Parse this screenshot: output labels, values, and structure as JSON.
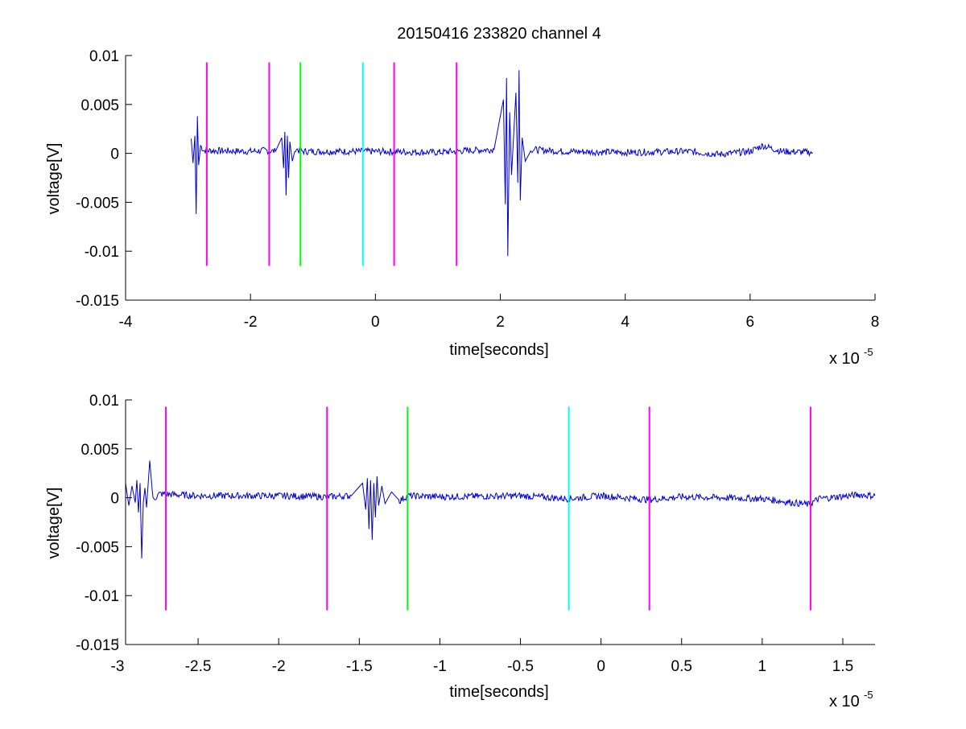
{
  "figure": {
    "title": "20150416 233820 channel 4"
  },
  "colors": {
    "signal": "#0000cc",
    "marker_magenta": "#ff00ff",
    "marker_green": "#00ff00",
    "marker_cyan": "#00ffff",
    "axes": "#000000"
  },
  "chart_data": [
    {
      "type": "line",
      "panel": "top",
      "xlabel": "time[seconds]",
      "ylabel": "voltage[V]",
      "x_scale_label": "x 10",
      "x_scale_exponent": "-5",
      "x_multiplier": 1e-05,
      "xlim": [
        -4,
        8
      ],
      "ylim": [
        -0.015,
        0.01
      ],
      "xticks": [
        -4,
        -2,
        0,
        2,
        4,
        6,
        8
      ],
      "xtick_labels": [
        "-4",
        "-2",
        "0",
        "2",
        "4",
        "6",
        "8"
      ],
      "yticks": [
        -0.015,
        -0.01,
        -0.005,
        0,
        0.005,
        0.01
      ],
      "ytick_labels": [
        "-0.015",
        "-0.01",
        "-0.005",
        "0",
        "0.005",
        "0.01"
      ],
      "grid": false,
      "series": [
        {
          "color": "#0000cc",
          "x_range": [
            -2.95,
            7.0
          ],
          "baseline_note": "",
          "points": [
            [
              -2.95,
              0.0015
            ],
            [
              -2.92,
              -0.001
            ],
            [
              -2.89,
              0.0018
            ],
            [
              -2.87,
              -0.0062
            ],
            [
              -2.85,
              0.0038
            ],
            [
              -2.83,
              -0.0012
            ],
            [
              -2.8,
              0.0008
            ],
            [
              -2.75,
              0.0003
            ],
            [
              -2.0,
              0.0002
            ],
            [
              -1.75,
              0.0003
            ],
            [
              -1.6,
              0.0002
            ],
            [
              -1.5,
              0.0016
            ],
            [
              -1.47,
              -0.0015
            ],
            [
              -1.45,
              0.0022
            ],
            [
              -1.43,
              -0.0043
            ],
            [
              -1.41,
              0.0018
            ],
            [
              -1.39,
              -0.0025
            ],
            [
              -1.37,
              0.0012
            ],
            [
              -1.33,
              -0.0008
            ],
            [
              -1.28,
              0.0005
            ],
            [
              -1.2,
              0.0002
            ],
            [
              0.0,
              0.0002
            ],
            [
              1.0,
              0.0001
            ],
            [
              1.5,
              0.0003
            ],
            [
              1.9,
              0.0004
            ],
            [
              2.05,
              0.0055
            ],
            [
              2.08,
              -0.0052
            ],
            [
              2.1,
              0.0077
            ],
            [
              2.12,
              -0.0105
            ],
            [
              2.15,
              0.0042
            ],
            [
              2.18,
              -0.0022
            ],
            [
              2.25,
              0.0062
            ],
            [
              2.28,
              -0.003
            ],
            [
              2.3,
              0.0085
            ],
            [
              2.32,
              -0.0048
            ],
            [
              2.35,
              0.0016
            ],
            [
              2.4,
              -0.0008
            ],
            [
              2.5,
              0.0004
            ],
            [
              3.0,
              0.0002
            ],
            [
              4.0,
              0.0001
            ],
            [
              5.0,
              0.0002
            ],
            [
              5.5,
              -0.0001
            ],
            [
              6.0,
              0.0002
            ],
            [
              6.2,
              0.0008
            ],
            [
              6.5,
              0.0002
            ],
            [
              7.0,
              0.0001
            ]
          ]
        }
      ],
      "markers": [
        {
          "x": -2.7,
          "color": "#ff00ff"
        },
        {
          "x": -1.7,
          "color": "#ff00ff"
        },
        {
          "x": -1.2,
          "color": "#00ff00"
        },
        {
          "x": -0.2,
          "color": "#00ffff"
        },
        {
          "x": 0.3,
          "color": "#ff00ff"
        },
        {
          "x": 1.3,
          "color": "#ff00ff"
        }
      ],
      "marker_y_range": [
        -0.0115,
        0.0093
      ]
    },
    {
      "type": "line",
      "panel": "bottom",
      "xlabel": "time[seconds]",
      "ylabel": "voltage[V]",
      "x_scale_label": "x 10",
      "x_scale_exponent": "-5",
      "x_multiplier": 1e-05,
      "xlim": [
        -2.95,
        1.7
      ],
      "ylim": [
        -0.015,
        0.01
      ],
      "xticks": [
        -3,
        -2.5,
        -2,
        -1.5,
        -1,
        -0.5,
        0,
        0.5,
        1,
        1.5
      ],
      "xtick_labels": [
        "-3",
        "-2.5",
        "-2",
        "-1.5",
        "-1",
        "-0.5",
        "0",
        "0.5",
        "1",
        "1.5"
      ],
      "yticks": [
        -0.015,
        -0.01,
        -0.005,
        0,
        0.005,
        0.01
      ],
      "ytick_labels": [
        "-0.015",
        "-0.01",
        "-0.005",
        "0",
        "0.005",
        "0.01"
      ],
      "grid": false,
      "series": [
        {
          "color": "#0000cc",
          "x_range": [
            -2.95,
            1.7
          ],
          "points": [
            [
              -2.95,
              0.0015
            ],
            [
              -2.93,
              -0.0008
            ],
            [
              -2.91,
              0.0012
            ],
            [
              -2.89,
              -0.0005
            ],
            [
              -2.88,
              0.0018
            ],
            [
              -2.87,
              -0.0015
            ],
            [
              -2.86,
              0.0015
            ],
            [
              -2.85,
              -0.0062
            ],
            [
              -2.84,
              -0.0005
            ],
            [
              -2.83,
              0.001
            ],
            [
              -2.82,
              -0.001
            ],
            [
              -2.8,
              0.0038
            ],
            [
              -2.78,
              -0.0002
            ],
            [
              -2.74,
              0.0004
            ],
            [
              -2.5,
              0.0002
            ],
            [
              -2.0,
              0.0002
            ],
            [
              -1.7,
              0.0001
            ],
            [
              -1.55,
              0.0002
            ],
            [
              -1.48,
              0.0015
            ],
            [
              -1.46,
              -0.0012
            ],
            [
              -1.45,
              0.002
            ],
            [
              -1.44,
              -0.0032
            ],
            [
              -1.43,
              0.0018
            ],
            [
              -1.42,
              -0.0043
            ],
            [
              -1.41,
              0.0015
            ],
            [
              -1.4,
              -0.002
            ],
            [
              -1.39,
              0.0022
            ],
            [
              -1.38,
              -0.0008
            ],
            [
              -1.36,
              0.0012
            ],
            [
              -1.34,
              -0.0006
            ],
            [
              -1.3,
              0.0006
            ],
            [
              -1.25,
              -0.0003
            ],
            [
              -1.2,
              0.0002
            ],
            [
              -1.0,
              0.0001
            ],
            [
              -0.5,
              0.0002
            ],
            [
              -0.2,
              -0.0001
            ],
            [
              0.0,
              0.0002
            ],
            [
              0.3,
              -0.0002
            ],
            [
              0.5,
              0.0001
            ],
            [
              1.0,
              -0.0001
            ],
            [
              1.29,
              -0.0007
            ],
            [
              1.35,
              -0.0001
            ],
            [
              1.6,
              0.0003
            ],
            [
              1.7,
              0.0002
            ]
          ]
        }
      ],
      "markers": [
        {
          "x": -2.7,
          "color": "#ff00ff"
        },
        {
          "x": -1.7,
          "color": "#ff00ff"
        },
        {
          "x": -1.2,
          "color": "#00ff00"
        },
        {
          "x": -0.2,
          "color": "#00ffff"
        },
        {
          "x": 0.3,
          "color": "#ff00ff"
        },
        {
          "x": 1.3,
          "color": "#ff00ff"
        }
      ],
      "marker_y_range": [
        -0.0115,
        0.0093
      ]
    }
  ]
}
